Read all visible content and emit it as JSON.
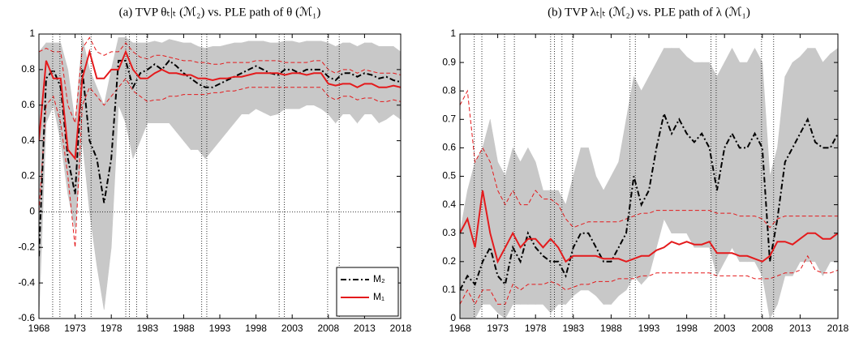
{
  "chart_data": [
    {
      "type": "line",
      "title": "(a) TVP θₜ|ₜ (ℳ₂) vs. PLE path of θ (ℳ₁)",
      "x": [
        1968,
        1969,
        1970,
        1971,
        1972,
        1973,
        1974,
        1975,
        1976,
        1977,
        1978,
        1979,
        1980,
        1981,
        1982,
        1983,
        1984,
        1985,
        1986,
        1987,
        1988,
        1989,
        1990,
        1991,
        1992,
        1993,
        1994,
        1995,
        1996,
        1997,
        1998,
        1999,
        2000,
        2001,
        2002,
        2003,
        2004,
        2005,
        2006,
        2007,
        2008,
        2009,
        2010,
        2011,
        2012,
        2013,
        2014,
        2015,
        2016,
        2017,
        2018
      ],
      "xlim": [
        1968,
        2018
      ],
      "xticks": [
        1968,
        1973,
        1978,
        1983,
        1988,
        1993,
        1998,
        2003,
        2008,
        2013,
        2018
      ],
      "ylim": [
        -0.6,
        1
      ],
      "yticks": [
        -0.6,
        -0.4,
        -0.2,
        0,
        0.2,
        0.4,
        0.6,
        0.8,
        1
      ],
      "hline": 0,
      "legend": "lower right",
      "vlines": [
        1969.9,
        1970.9,
        1973.9,
        1975.2,
        1980.0,
        1980.5,
        1981.5,
        1982.9,
        1990.5,
        1991.2,
        2001.2,
        2001.9,
        2007.9,
        2009.5
      ],
      "intervals": [
        {
          "color": "#c8c8c8",
          "fill": true,
          "lower": [
            -0.6,
            0.5,
            0.6,
            0.4,
            0.1,
            -0.1,
            0.4,
            0.0,
            -0.3,
            -0.55,
            -0.2,
            0.6,
            0.5,
            0.3,
            0.4,
            0.5,
            0.5,
            0.5,
            0.5,
            0.45,
            0.4,
            0.35,
            0.35,
            0.3,
            0.35,
            0.4,
            0.45,
            0.5,
            0.55,
            0.55,
            0.58,
            0.56,
            0.54,
            0.55,
            0.58,
            0.58,
            0.58,
            0.6,
            0.6,
            0.58,
            0.55,
            0.5,
            0.55,
            0.55,
            0.5,
            0.55,
            0.55,
            0.5,
            0.52,
            0.55,
            0.52
          ],
          "upper": [
            0.9,
            0.95,
            0.95,
            0.95,
            0.8,
            0.5,
            0.98,
            0.8,
            0.7,
            0.6,
            0.8,
            0.98,
            0.98,
            0.95,
            0.95,
            0.95,
            0.96,
            0.95,
            0.97,
            0.96,
            0.95,
            0.95,
            0.93,
            0.92,
            0.93,
            0.93,
            0.94,
            0.95,
            0.95,
            0.96,
            0.96,
            0.96,
            0.95,
            0.95,
            0.96,
            0.96,
            0.95,
            0.96,
            0.96,
            0.96,
            0.95,
            0.93,
            0.95,
            0.95,
            0.93,
            0.95,
            0.95,
            0.93,
            0.93,
            0.93,
            0.9
          ]
        },
        {
          "color": "#e41a1c",
          "fill": false,
          "lower": [
            0.0,
            0.6,
            0.65,
            0.5,
            0.2,
            -0.2,
            0.6,
            0.7,
            0.65,
            0.6,
            0.65,
            0.7,
            0.75,
            0.68,
            0.65,
            0.62,
            0.63,
            0.63,
            0.65,
            0.65,
            0.66,
            0.66,
            0.66,
            0.66,
            0.67,
            0.67,
            0.68,
            0.68,
            0.69,
            0.7,
            0.7,
            0.7,
            0.7,
            0.7,
            0.7,
            0.7,
            0.7,
            0.7,
            0.7,
            0.7,
            0.65,
            0.63,
            0.65,
            0.65,
            0.63,
            0.64,
            0.64,
            0.62,
            0.62,
            0.63,
            0.62
          ],
          "upper": [
            0.9,
            0.92,
            0.9,
            0.9,
            0.6,
            0.5,
            0.92,
            0.98,
            0.9,
            0.88,
            0.9,
            0.9,
            0.95,
            0.9,
            0.87,
            0.86,
            0.88,
            0.88,
            0.87,
            0.86,
            0.85,
            0.85,
            0.84,
            0.84,
            0.83,
            0.83,
            0.84,
            0.84,
            0.84,
            0.84,
            0.85,
            0.85,
            0.85,
            0.85,
            0.84,
            0.84,
            0.84,
            0.84,
            0.85,
            0.85,
            0.8,
            0.78,
            0.8,
            0.8,
            0.78,
            0.8,
            0.79,
            0.78,
            0.78,
            0.78,
            0.77
          ]
        }
      ],
      "series": [
        {
          "name": "M₂",
          "color": "#000000",
          "dash": "dashdot",
          "values": [
            -0.25,
            0.75,
            0.8,
            0.7,
            0.3,
            0.1,
            0.8,
            0.4,
            0.3,
            0.05,
            0.3,
            0.85,
            0.85,
            0.7,
            0.78,
            0.8,
            0.83,
            0.8,
            0.85,
            0.82,
            0.78,
            0.75,
            0.72,
            0.7,
            0.7,
            0.72,
            0.74,
            0.76,
            0.78,
            0.8,
            0.82,
            0.8,
            0.78,
            0.77,
            0.8,
            0.8,
            0.78,
            0.8,
            0.8,
            0.8,
            0.76,
            0.74,
            0.78,
            0.78,
            0.76,
            0.78,
            0.77,
            0.75,
            0.76,
            0.74,
            0.73
          ]
        },
        {
          "name": "M₁",
          "color": "#e41a1c",
          "dash": "solid",
          "values": [
            0.4,
            0.85,
            0.75,
            0.75,
            0.35,
            0.3,
            0.75,
            0.9,
            0.75,
            0.75,
            0.8,
            0.8,
            0.9,
            0.8,
            0.75,
            0.75,
            0.78,
            0.8,
            0.78,
            0.78,
            0.77,
            0.77,
            0.75,
            0.75,
            0.74,
            0.75,
            0.75,
            0.76,
            0.76,
            0.77,
            0.78,
            0.78,
            0.78,
            0.78,
            0.77,
            0.78,
            0.78,
            0.77,
            0.78,
            0.78,
            0.72,
            0.71,
            0.72,
            0.72,
            0.7,
            0.72,
            0.72,
            0.7,
            0.7,
            0.71,
            0.7
          ]
        }
      ]
    },
    {
      "type": "line",
      "title": "(b) TVP λₜ|ₜ (ℳ₂) vs. PLE path of λ (ℳ₁)",
      "x": [
        1968,
        1969,
        1970,
        1971,
        1972,
        1973,
        1974,
        1975,
        1976,
        1977,
        1978,
        1979,
        1980,
        1981,
        1982,
        1983,
        1984,
        1985,
        1986,
        1987,
        1988,
        1989,
        1990,
        1991,
        1992,
        1993,
        1994,
        1995,
        1996,
        1997,
        1998,
        1999,
        2000,
        2001,
        2002,
        2003,
        2004,
        2005,
        2006,
        2007,
        2008,
        2009,
        2010,
        2011,
        2012,
        2013,
        2014,
        2015,
        2016,
        2017,
        2018
      ],
      "xlim": [
        1968,
        2018
      ],
      "xticks": [
        1968,
        1973,
        1978,
        1983,
        1988,
        1993,
        1998,
        2003,
        2008,
        2013,
        2018
      ],
      "ylim": [
        0,
        1
      ],
      "yticks": [
        0,
        0.1,
        0.2,
        0.3,
        0.4,
        0.5,
        0.6,
        0.7,
        0.8,
        0.9,
        1
      ],
      "vlines": [
        1969.9,
        1970.9,
        1973.9,
        1975.2,
        1980.0,
        1980.5,
        1981.5,
        1982.9,
        1990.5,
        1991.2,
        2001.2,
        2001.9,
        2007.9,
        2009.5
      ],
      "intervals": [
        {
          "color": "#c8c8c8",
          "fill": true,
          "lower": [
            0.0,
            0.0,
            0.0,
            0.05,
            0.05,
            0.02,
            0.0,
            0.05,
            0.05,
            0.05,
            0.05,
            0.05,
            0.02,
            0.05,
            0.05,
            0.08,
            0.1,
            0.1,
            0.08,
            0.05,
            0.05,
            0.08,
            0.1,
            0.15,
            0.12,
            0.15,
            0.25,
            0.35,
            0.3,
            0.3,
            0.3,
            0.25,
            0.25,
            0.25,
            0.15,
            0.2,
            0.25,
            0.2,
            0.2,
            0.2,
            0.15,
            0.0,
            0.05,
            0.15,
            0.15,
            0.2,
            0.2,
            0.2,
            0.15,
            0.2,
            0.2
          ],
          "upper": [
            0.3,
            0.45,
            0.55,
            0.6,
            0.7,
            0.55,
            0.5,
            0.6,
            0.55,
            0.6,
            0.55,
            0.45,
            0.45,
            0.45,
            0.4,
            0.5,
            0.6,
            0.6,
            0.5,
            0.45,
            0.5,
            0.55,
            0.7,
            0.85,
            0.8,
            0.85,
            0.9,
            0.95,
            0.95,
            0.95,
            0.92,
            0.9,
            0.9,
            0.9,
            0.85,
            0.9,
            0.95,
            0.9,
            0.9,
            0.95,
            0.9,
            0.5,
            0.6,
            0.85,
            0.9,
            0.92,
            0.95,
            0.95,
            0.9,
            0.93,
            0.95
          ]
        },
        {
          "color": "#e41a1c",
          "fill": false,
          "lower": [
            0.05,
            0.1,
            0.05,
            0.1,
            0.1,
            0.05,
            0.05,
            0.12,
            0.1,
            0.12,
            0.12,
            0.12,
            0.13,
            0.12,
            0.1,
            0.11,
            0.12,
            0.12,
            0.13,
            0.13,
            0.13,
            0.14,
            0.14,
            0.14,
            0.15,
            0.15,
            0.16,
            0.16,
            0.16,
            0.16,
            0.16,
            0.16,
            0.16,
            0.16,
            0.15,
            0.15,
            0.15,
            0.15,
            0.15,
            0.14,
            0.14,
            0.14,
            0.15,
            0.16,
            0.16,
            0.17,
            0.22,
            0.17,
            0.16,
            0.16,
            0.17
          ],
          "upper": [
            0.75,
            0.8,
            0.55,
            0.6,
            0.55,
            0.45,
            0.4,
            0.45,
            0.4,
            0.4,
            0.45,
            0.42,
            0.42,
            0.4,
            0.35,
            0.32,
            0.33,
            0.34,
            0.34,
            0.34,
            0.34,
            0.34,
            0.35,
            0.36,
            0.37,
            0.37,
            0.38,
            0.38,
            0.38,
            0.38,
            0.38,
            0.38,
            0.38,
            0.38,
            0.37,
            0.37,
            0.37,
            0.36,
            0.36,
            0.36,
            0.35,
            0.32,
            0.35,
            0.36,
            0.36,
            0.36,
            0.36,
            0.36,
            0.36,
            0.36,
            0.36
          ]
        }
      ],
      "series": [
        {
          "color": "#000000",
          "dash": "dashdot",
          "values": [
            0.1,
            0.15,
            0.12,
            0.2,
            0.25,
            0.15,
            0.12,
            0.25,
            0.2,
            0.3,
            0.25,
            0.22,
            0.2,
            0.2,
            0.15,
            0.25,
            0.3,
            0.3,
            0.25,
            0.2,
            0.2,
            0.25,
            0.3,
            0.5,
            0.4,
            0.45,
            0.6,
            0.72,
            0.65,
            0.7,
            0.65,
            0.62,
            0.65,
            0.6,
            0.45,
            0.6,
            0.65,
            0.6,
            0.6,
            0.65,
            0.6,
            0.2,
            0.35,
            0.55,
            0.6,
            0.65,
            0.7,
            0.62,
            0.6,
            0.6,
            0.65
          ]
        },
        {
          "color": "#e41a1c",
          "dash": "solid",
          "values": [
            0.3,
            0.35,
            0.25,
            0.45,
            0.3,
            0.2,
            0.25,
            0.3,
            0.25,
            0.28,
            0.28,
            0.25,
            0.28,
            0.25,
            0.2,
            0.22,
            0.22,
            0.22,
            0.22,
            0.21,
            0.21,
            0.21,
            0.2,
            0.21,
            0.22,
            0.22,
            0.24,
            0.25,
            0.27,
            0.26,
            0.27,
            0.26,
            0.26,
            0.27,
            0.23,
            0.23,
            0.23,
            0.22,
            0.22,
            0.21,
            0.2,
            0.22,
            0.27,
            0.27,
            0.26,
            0.28,
            0.3,
            0.3,
            0.28,
            0.28,
            0.3
          ]
        }
      ]
    }
  ]
}
